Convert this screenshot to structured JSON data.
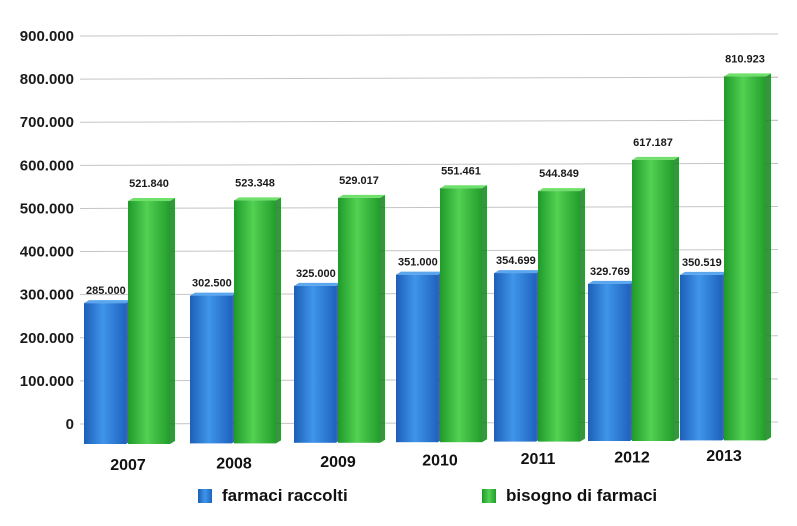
{
  "chart_data": {
    "type": "bar",
    "categories": [
      "2007",
      "2008",
      "2009",
      "2010",
      "2011",
      "2012",
      "2013"
    ],
    "series": [
      {
        "name": "farmaci raccolti",
        "values": [
          285000,
          302500,
          325000,
          351000,
          354699,
          329769,
          350519
        ],
        "labels": [
          "285.000",
          "302.500",
          "325.000",
          "351.000",
          "354.699",
          "329.769",
          "350.519"
        ],
        "color": "#2f7fd6"
      },
      {
        "name": "bisogno di farmaci",
        "values": [
          521840,
          523348,
          529017,
          551461,
          544849,
          617187,
          810923
        ],
        "labels": [
          "521.840",
          "523.348",
          "529.017",
          "551.461",
          "544.849",
          "617.187",
          "810.923"
        ],
        "color": "#33b83a"
      }
    ],
    "yticks": [
      "0",
      "100.000",
      "200.000",
      "300.000",
      "400.000",
      "500.000",
      "600.000",
      "700.000",
      "800.000",
      "900.000"
    ],
    "ylim": [
      0,
      900000
    ],
    "grid": true,
    "legend_position": "bottom",
    "title": "",
    "xlabel": "",
    "ylabel": ""
  }
}
